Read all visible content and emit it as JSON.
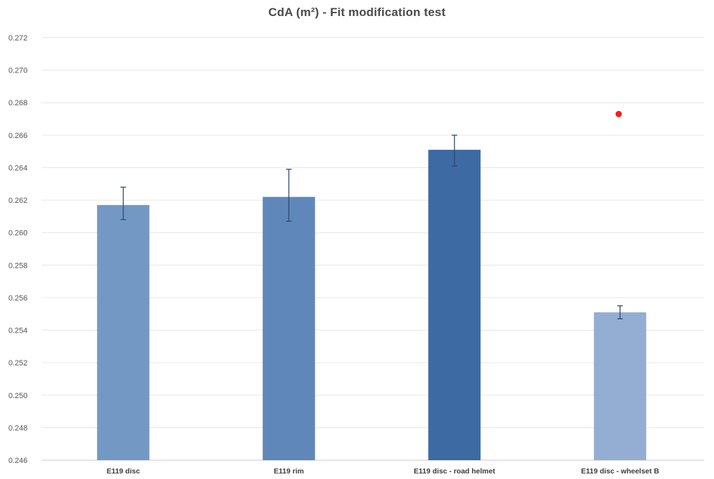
{
  "chart_data": {
    "type": "bar",
    "title": "CdA (m²) - Fit modification test",
    "xlabel": "",
    "ylabel": "",
    "ylim": [
      0.246,
      0.272
    ],
    "yticks": [
      "0.246",
      "0.248",
      "0.250",
      "0.252",
      "0.254",
      "0.256",
      "0.258",
      "0.260",
      "0.262",
      "0.264",
      "0.266",
      "0.268",
      "0.270",
      "0.272"
    ],
    "grid": true,
    "categories": [
      "E119 disc",
      "E119 rim",
      "E119 disc - road helmet",
      "E119 disc - wheelset B"
    ],
    "values": [
      0.2617,
      0.2622,
      0.2651,
      0.2551
    ],
    "error_low": [
      0.2608,
      0.2607,
      0.2641,
      0.2547
    ],
    "error_high": [
      0.2628,
      0.2639,
      0.266,
      0.2555
    ],
    "bar_colors": [
      "#7398c4",
      "#5f87ba",
      "#3d6aa3",
      "#93aed2"
    ],
    "annotations": [
      {
        "type": "point",
        "category": "E119 disc - wheelset B",
        "value": 0.2673,
        "color": "#ff1a1a"
      }
    ]
  }
}
